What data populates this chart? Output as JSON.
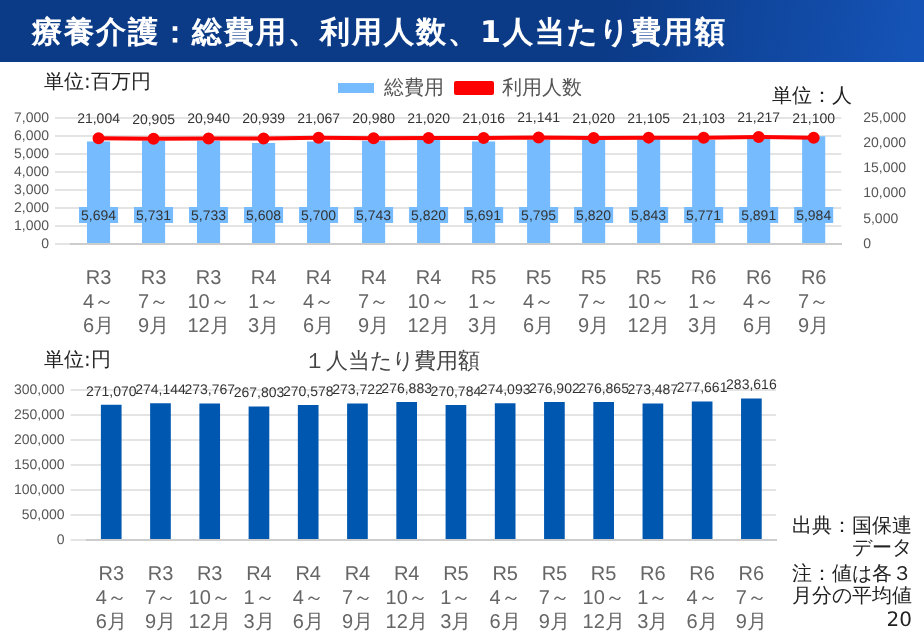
{
  "chart_data": [
    {
      "type": "bar",
      "title": "療養介護：総費用、利用人数、1人当たり費用額",
      "ylabel": "単位:百万円",
      "y2label": "単位：人",
      "categories": [
        "R3 4～6月",
        "R3 7～9月",
        "R3 10～12月",
        "R4 1～3月",
        "R4 4～6月",
        "R4 7～9月",
        "R4 10～12月",
        "R5 1～3月",
        "R5 4～6月",
        "R5 7～9月",
        "R5 10～12月",
        "R6 1～3月",
        "R6 4～6月",
        "R6 7～9月"
      ],
      "series": [
        {
          "name": "総費用",
          "type": "bar",
          "color": "#75bbfd",
          "values": [
            5694,
            5731,
            5733,
            5608,
            5700,
            5743,
            5820,
            5691,
            5795,
            5820,
            5843,
            5771,
            5891,
            5984
          ],
          "value_labels": [
            "5,694",
            "5,731",
            "5,733",
            "5,608",
            "5,700",
            "5,743",
            "5,820",
            "5,691",
            "5,795",
            "5,820",
            "5,843",
            "5,771",
            "5,891",
            "5,984"
          ]
        },
        {
          "name": "利用人数",
          "type": "line",
          "axis": "y2",
          "color": "#ff0000",
          "values": [
            21004,
            20905,
            20940,
            20939,
            21067,
            20980,
            21020,
            21016,
            21141,
            21020,
            21105,
            21103,
            21217,
            21100
          ],
          "value_labels": [
            "21,004",
            "20,905",
            "20,940",
            "20,939",
            "21,067",
            "20,980",
            "21,020",
            "21,016",
            "21,141",
            "21,020",
            "21,105",
            "21,103",
            "21,217",
            "21,100"
          ]
        }
      ],
      "ylim": [
        0,
        7000
      ],
      "yticks": [
        0,
        {
          "value": 1000,
          "label": "1,000"
        },
        {
          "value": 2000,
          "label": "2,000"
        },
        {
          "value": 3000,
          "label": "3,000"
        },
        {
          "value": 4000,
          "label": "4,000"
        },
        {
          "value": 5000,
          "label": "5,000"
        },
        {
          "value": 6000,
          "label": "6,000"
        },
        {
          "value": 7000,
          "label": "7,000"
        }
      ],
      "y2lim": [
        0,
        25000
      ],
      "y2ticks": [
        0,
        {
          "value": 5000,
          "label": "5,000"
        },
        {
          "value": 10000,
          "label": "10,000"
        },
        {
          "value": 15000,
          "label": "15,000"
        },
        {
          "value": 20000,
          "label": "20,000"
        },
        {
          "value": 25000,
          "label": "25,000"
        }
      ],
      "grid": "y",
      "legend": "top",
      "marker": "circle"
    },
    {
      "type": "bar",
      "title": "１人当たり費用額",
      "ylabel": "単位:円",
      "categories": [
        "R3 4～6月",
        "R3 7～9月",
        "R3 10～12月",
        "R4 1～3月",
        "R4 4～6月",
        "R4 7～9月",
        "R4 10～12月",
        "R5 1～3月",
        "R5 4～6月",
        "R5 7～9月",
        "R5 10～12月",
        "R6 1～3月",
        "R6 4～6月",
        "R6 7～9月"
      ],
      "values": [
        271070,
        274144,
        273767,
        267803,
        270578,
        273722,
        276883,
        270784,
        274093,
        276902,
        276865,
        273487,
        277661,
        283616
      ],
      "color": "#0057b0",
      "value_labels": [
        "271,070",
        "274,144",
        "273,767",
        "267,803",
        "270,578",
        "273,722",
        "276,883",
        "270,784",
        "274,093",
        "276,902",
        "276,865",
        "273,487",
        "277,661",
        "283,616"
      ],
      "ylim": [
        0,
        300000
      ],
      "yticks": [
        0,
        {
          "value": 50000,
          "label": "50,000"
        },
        {
          "value": 100000,
          "label": "100,000"
        },
        {
          "value": 150000,
          "label": "150,000"
        },
        {
          "value": 200000,
          "label": "200,000"
        },
        {
          "value": 250000,
          "label": "250,000"
        },
        {
          "value": 300000,
          "label": "300,000"
        }
      ],
      "grid": "y",
      "annotations": [
        "出典：国保連データ",
        "注：値は各３月分の平均値",
        "20"
      ]
    }
  ]
}
